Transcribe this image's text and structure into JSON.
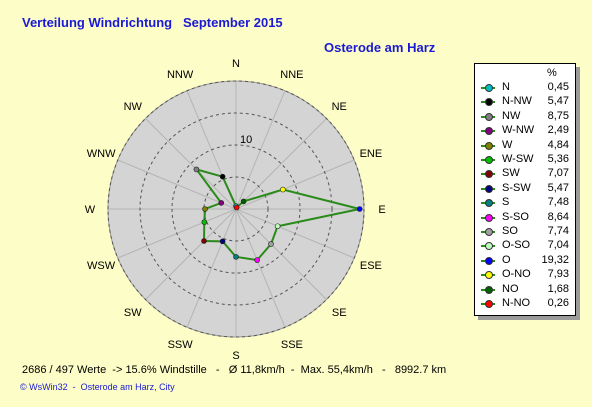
{
  "header": {
    "title": "Verteilung Windrichtung   September 2015",
    "location": "Osterode am Harz"
  },
  "chart_data": {
    "type": "radar",
    "title": "Verteilung Windrichtung   September 2015",
    "unit": "%",
    "ring_label": "10",
    "rings": [
      5,
      10,
      15,
      20
    ],
    "rmax": 20,
    "grid": true,
    "legend": "right",
    "directions": [
      "N",
      "NNE",
      "NE",
      "ENE",
      "E",
      "ESE",
      "SE",
      "SSE",
      "S",
      "SSW",
      "SW",
      "WSW",
      "W",
      "WNW",
      "NW",
      "NNW"
    ],
    "series": [
      {
        "key": "N",
        "legend": "N",
        "value": 0.45,
        "color": "#00c0c0"
      },
      {
        "key": "NNW",
        "legend": "N-NW",
        "value": 5.47,
        "color": "#000000"
      },
      {
        "key": "NW",
        "legend": "NW",
        "value": 8.75,
        "color": "#808080"
      },
      {
        "key": "WNW",
        "legend": "W-NW",
        "value": 2.49,
        "color": "#800080"
      },
      {
        "key": "W",
        "legend": "W",
        "value": 4.84,
        "color": "#808000"
      },
      {
        "key": "WSW",
        "legend": "W-SW",
        "value": 5.36,
        "color": "#00c000"
      },
      {
        "key": "SW",
        "legend": "SW",
        "value": 7.07,
        "color": "#800000"
      },
      {
        "key": "SSW",
        "legend": "S-SW",
        "value": 5.47,
        "color": "#000080"
      },
      {
        "key": "S",
        "legend": "S",
        "value": 7.48,
        "color": "#008080"
      },
      {
        "key": "SSE",
        "legend": "S-SO",
        "value": 8.64,
        "color": "#ff00ff"
      },
      {
        "key": "SE",
        "legend": "SO",
        "value": 7.74,
        "color": "#a0a0a0"
      },
      {
        "key": "ESE",
        "legend": "O-SO",
        "value": 7.04,
        "color": "#c0ffc0"
      },
      {
        "key": "E",
        "legend": "O",
        "value": 19.32,
        "color": "#0000ff"
      },
      {
        "key": "ENE",
        "legend": "O-NO",
        "value": 7.93,
        "color": "#ffff00"
      },
      {
        "key": "NE",
        "legend": "NO",
        "value": 1.68,
        "color": "#006000"
      },
      {
        "key": "NNE",
        "legend": "N-NO",
        "value": 0.26,
        "color": "#ff0000"
      }
    ],
    "line_color": "#2a8a1a",
    "disc_color": "#d4d4d4"
  },
  "footer": {
    "stats": "2686 / 497 Werte  -> 15.6% Windstille   -   Ø 11,8km/h  -  Max. 55,4km/h   -   8992.7 km",
    "credit": "© WsWin32  -  Osterode am Harz, City"
  }
}
